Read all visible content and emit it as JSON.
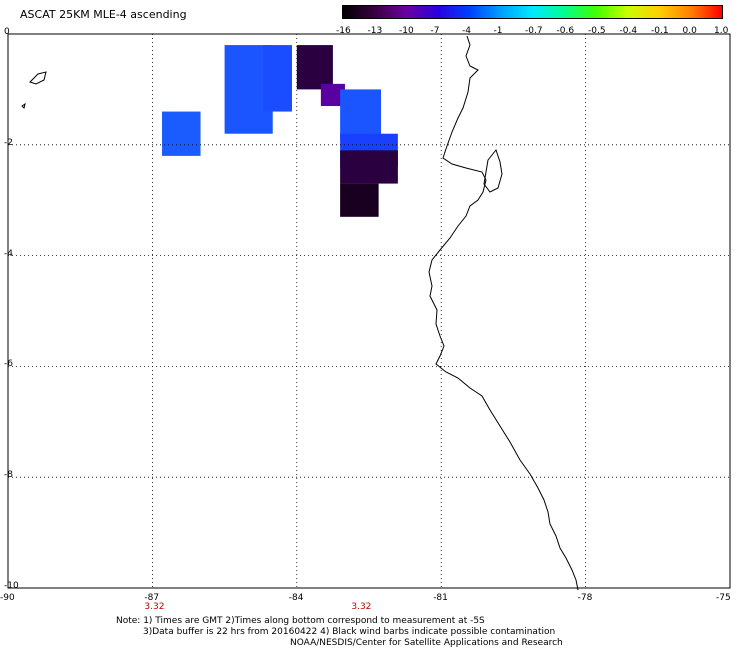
{
  "title": "ASCAT 25KM MLE-4 ascending",
  "colorbar": {
    "labels": [
      "-16",
      "-13",
      "-10",
      "-7",
      "-4",
      "-1",
      "-0.7",
      "-0.6",
      "-0.5",
      "-0.4",
      "-0.1",
      "0.0",
      "1.0"
    ],
    "colors": [
      "#000000",
      "#3a0040",
      "#6a00a0",
      "#2a00e0",
      "#0040ff",
      "#00a0ff",
      "#00e8ff",
      "#00ff90",
      "#40ff00",
      "#c8ff00",
      "#ffd000",
      "#ff8000",
      "#ff0000"
    ]
  },
  "map": {
    "lat_ticks": [
      "0",
      "-2",
      "-4",
      "-6",
      "-8",
      "-10"
    ],
    "lon_ticks": [
      "-90",
      "-87",
      "-84",
      "-81",
      "-78",
      "-75"
    ],
    "time_labels": [
      "3.32",
      "3.32"
    ],
    "lat_range": [
      -10,
      0
    ],
    "lon_range": [
      -90,
      -75
    ],
    "grid": "dotted",
    "cells": [
      {
        "lon": -86.8,
        "lat": -1.4,
        "w": 0.8,
        "h": 0.8,
        "color": "#1a5cff"
      },
      {
        "lon": -85.5,
        "lat": -0.2,
        "w": 1.0,
        "h": 1.6,
        "color": "#1a55ff"
      },
      {
        "lon": -84.7,
        "lat": -0.2,
        "w": 0.6,
        "h": 1.2,
        "color": "#1a4dff"
      },
      {
        "lon": -84.0,
        "lat": -0.2,
        "w": 0.75,
        "h": 0.8,
        "color": "#2a0040"
      },
      {
        "lon": -83.5,
        "lat": -0.9,
        "w": 0.5,
        "h": 0.4,
        "color": "#5a00a0"
      },
      {
        "lon": -83.1,
        "lat": -1.0,
        "w": 0.85,
        "h": 0.9,
        "color": "#1a55ff"
      },
      {
        "lon": -83.1,
        "lat": -1.8,
        "w": 1.2,
        "h": 0.6,
        "color": "#1a40ff"
      },
      {
        "lon": -83.1,
        "lat": -2.1,
        "w": 1.2,
        "h": 0.6,
        "color": "#2a0040"
      },
      {
        "lon": -83.1,
        "lat": -2.7,
        "w": 0.8,
        "h": 0.6,
        "color": "#1a0020"
      }
    ]
  },
  "notes": [
    "Note: 1) Times are GMT 2)Times along bottom correspond to measurement at -5S",
    "3)Data buffer is 22 hrs from 20160422 4) Black wind barbs indicate possible contamination",
    "NOAA/NESDIS/Center for Satellite Applications and Research"
  ]
}
